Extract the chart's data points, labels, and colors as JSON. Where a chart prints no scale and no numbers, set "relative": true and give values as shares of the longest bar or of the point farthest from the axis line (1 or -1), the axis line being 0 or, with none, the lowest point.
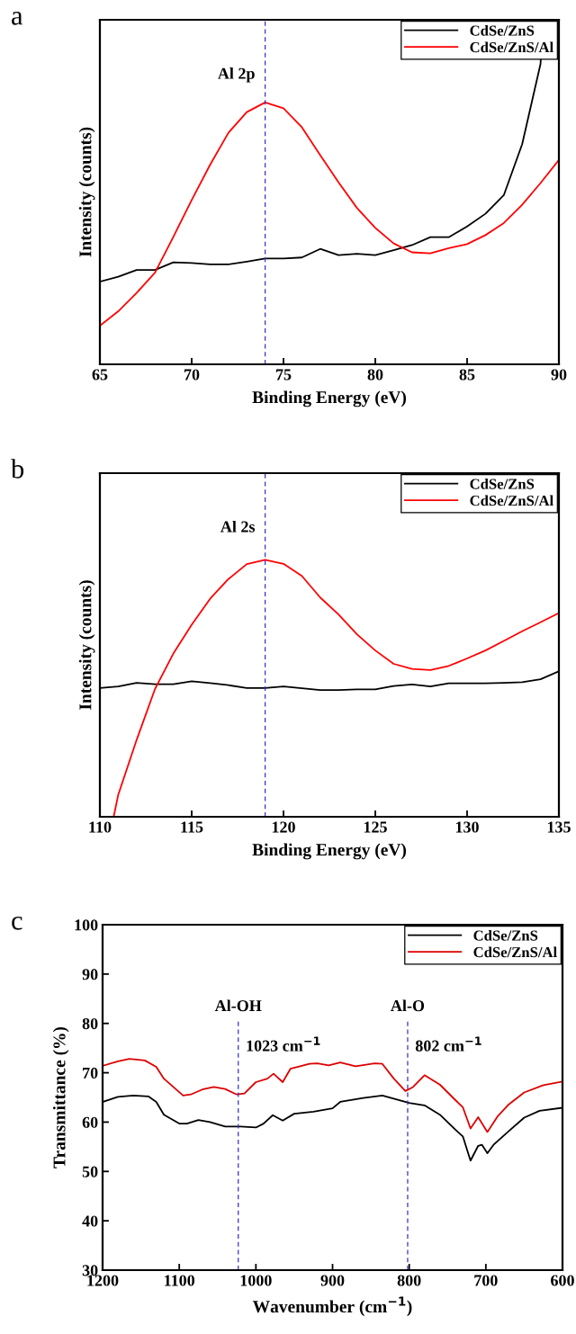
{
  "chart_data": [
    {
      "type": "line",
      "title": "a",
      "xlabel": "Binding Energy (eV)",
      "ylabel": "Intensity (counts)",
      "relative": true,
      "legend": "top right",
      "grid": false,
      "xlim": [
        65,
        90
      ],
      "xticks": [
        65,
        70,
        75,
        80,
        85,
        90
      ],
      "ref_lines": [
        {
          "axis": "x",
          "value": 74,
          "color": "#3333cc",
          "line_style": "dashed"
        }
      ],
      "annotations": [
        "Al 2p"
      ],
      "series": [
        {
          "name": "CdSe/ZnS",
          "color": "#000000",
          "x": [
            65,
            66,
            67,
            68,
            69,
            70,
            71,
            72,
            73,
            74,
            75,
            76,
            77,
            78,
            79,
            80,
            81,
            82,
            83,
            84,
            85,
            86,
            87,
            88,
            89,
            89.13
          ],
          "values": [
            0.24,
            0.254,
            0.274,
            0.274,
            0.296,
            0.294,
            0.29,
            0.29,
            0.298,
            0.307,
            0.307,
            0.31,
            0.335,
            0.317,
            0.321,
            0.317,
            0.331,
            0.346,
            0.369,
            0.369,
            0.4,
            0.437,
            0.491,
            0.639,
            0.872,
            1.0
          ]
        },
        {
          "name": "CdSe/ZnS/Al",
          "color": "#ff0000",
          "x": [
            65,
            66,
            67,
            68,
            69,
            70,
            71,
            72,
            73,
            74,
            75,
            76,
            77,
            78,
            79,
            80,
            81,
            82,
            83,
            84,
            85,
            86,
            87,
            88,
            89,
            90
          ],
          "values": [
            0.112,
            0.154,
            0.207,
            0.266,
            0.37,
            0.477,
            0.579,
            0.672,
            0.732,
            0.76,
            0.743,
            0.688,
            0.607,
            0.528,
            0.454,
            0.396,
            0.351,
            0.325,
            0.322,
            0.337,
            0.349,
            0.375,
            0.41,
            0.463,
            0.526,
            0.593
          ]
        }
      ]
    },
    {
      "type": "line",
      "title": "b",
      "xlabel": "Binding Energy (eV)",
      "ylabel": "Intensity (counts)",
      "relative": true,
      "legend": "top right",
      "grid": false,
      "xlim": [
        110,
        135
      ],
      "xticks": [
        110,
        115,
        120,
        125,
        130,
        135
      ],
      "ref_lines": [
        {
          "axis": "x",
          "value": 119,
          "color": "#3333cc",
          "line_style": "dashed"
        }
      ],
      "annotations": [
        "Al 2s"
      ],
      "series": [
        {
          "name": "CdSe/ZnS",
          "color": "#000000",
          "x": [
            110,
            111,
            112,
            113,
            114,
            115,
            116,
            117,
            118,
            119,
            120,
            121,
            122,
            123,
            124,
            125,
            126,
            127,
            128,
            129,
            130,
            131,
            132,
            133,
            134,
            135
          ],
          "values": [
            0.501,
            0.507,
            0.521,
            0.516,
            0.516,
            0.527,
            0.52,
            0.512,
            0.501,
            0.501,
            0.507,
            0.5,
            0.493,
            0.493,
            0.496,
            0.496,
            0.509,
            0.515,
            0.507,
            0.519,
            0.519,
            0.519,
            0.521,
            0.524,
            0.535,
            0.566
          ]
        },
        {
          "name": "CdSe/ZnS/Al",
          "color": "#ff0000",
          "x": [
            110.75,
            111,
            112,
            113,
            114,
            115,
            116,
            117,
            118,
            119,
            120,
            121,
            122,
            123,
            124,
            125,
            126,
            127,
            128,
            129,
            130,
            131,
            132,
            133,
            134,
            135
          ],
          "values": [
            0.0,
            0.086,
            0.299,
            0.497,
            0.635,
            0.747,
            0.848,
            0.925,
            0.983,
            1.0,
            0.984,
            0.937,
            0.853,
            0.787,
            0.71,
            0.647,
            0.595,
            0.575,
            0.571,
            0.587,
            0.616,
            0.647,
            0.684,
            0.722,
            0.757,
            0.793
          ]
        }
      ]
    },
    {
      "type": "line",
      "title": "c",
      "xlabel": "Wavenumber (cm$^{−1}$)",
      "ylabel": "Transmittance (%)",
      "legend": "top right",
      "grid": false,
      "xlim": [
        1200,
        600
      ],
      "xticks": [
        1200,
        1100,
        1000,
        900,
        800,
        700,
        600
      ],
      "ylim": [
        30,
        100
      ],
      "yticks": [
        30,
        40,
        50,
        60,
        70,
        80,
        90,
        100
      ],
      "ref_lines": [
        {
          "axis": "x",
          "value": 1023,
          "label": "Al-OH",
          "color": "#3333cc",
          "line_style": "dashed"
        },
        {
          "axis": "x",
          "value": 802,
          "label": "Al-O",
          "color": "#3333cc",
          "line_style": "dashed"
        }
      ],
      "annotations": [
        "1023 cm$^{−1}$",
        "802 cm$^{−1}$"
      ],
      "series": [
        {
          "name": "CdSe/ZnS",
          "color": "#000000",
          "x": [
            1200,
            1180,
            1160,
            1140,
            1130,
            1120,
            1100,
            1090,
            1075,
            1060,
            1040,
            1020,
            1000,
            990,
            978,
            965,
            950,
            925,
            900,
            890,
            860,
            835,
            800,
            780,
            760,
            740,
            730,
            720,
            710,
            705,
            698,
            690,
            670,
            650,
            630,
            600
          ],
          "values": [
            64.1,
            65.1,
            65.4,
            65.2,
            64.1,
            61.5,
            59.7,
            59.7,
            60.4,
            60.0,
            59.1,
            59.1,
            58.9,
            59.7,
            61.4,
            60.3,
            61.7,
            62.1,
            62.8,
            64.1,
            64.9,
            65.4,
            63.9,
            63.4,
            61.5,
            58.5,
            57.1,
            52.2,
            55.2,
            55.4,
            53.7,
            55.4,
            58.2,
            60.9,
            62.3,
            62.9
          ]
        },
        {
          "name": "CdSe/ZnS/Al",
          "color": "#dd0000",
          "x": [
            1200,
            1180,
            1165,
            1145,
            1130,
            1120,
            1095,
            1085,
            1070,
            1055,
            1040,
            1025,
            1015,
            1000,
            985,
            977,
            965,
            955,
            930,
            920,
            905,
            890,
            870,
            845,
            835,
            820,
            805,
            795,
            780,
            760,
            740,
            730,
            720,
            710,
            698,
            685,
            670,
            650,
            625,
            600
          ],
          "values": [
            71.4,
            72.3,
            72.8,
            72.5,
            71.2,
            68.8,
            65.4,
            65.6,
            66.6,
            67.1,
            66.7,
            65.6,
            65.8,
            68.1,
            68.8,
            69.8,
            68.1,
            70.8,
            71.8,
            71.9,
            71.5,
            72.1,
            71.3,
            71.9,
            71.8,
            68.8,
            66.3,
            67.1,
            69.5,
            67.6,
            64.5,
            63.0,
            58.7,
            61.0,
            58.0,
            61.1,
            63.6,
            66.0,
            67.5,
            68.2
          ]
        }
      ]
    }
  ]
}
